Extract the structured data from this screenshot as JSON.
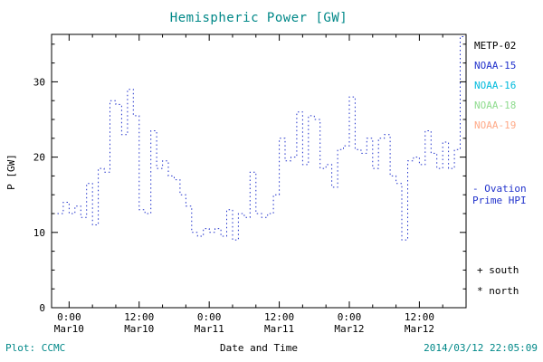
{
  "colors": {
    "accent_teal": "#008888",
    "line_blue": "#2233cc",
    "axis_black": "#000000"
  },
  "legend": {
    "satellites": [
      {
        "label": "METP-02",
        "color": "#000000"
      },
      {
        "label": "NOAA-15",
        "color": "#2233cc"
      },
      {
        "label": "NOAA-16",
        "color": "#00bbdd"
      },
      {
        "label": "NOAA-18",
        "color": "#8fdc8f"
      },
      {
        "label": "NOAA-19",
        "color": "#ffaa88"
      },
      {
        "label": "METP-02",
        "color": "#000000"
      }
    ],
    "ovation_label": "- Ovation\nPrime HPI",
    "south_label": "+ south",
    "north_label": "* north"
  },
  "footer": {
    "plot_source": "Plot: CCMC",
    "timestamp": "2014/03/12 22:05:09"
  },
  "chart_data": {
    "type": "line",
    "title": "Hemispheric Power [GW]",
    "xlabel": "Date and Time",
    "ylabel": "P [GW]",
    "ylim": [
      0,
      36.3
    ],
    "xlim_hours": [
      -3,
      68
    ],
    "y_ticks": [
      0,
      10,
      20,
      30
    ],
    "y_minor_step": 2.5,
    "x_minor_step": 4,
    "x_ticks": [
      {
        "hour": 0,
        "time": "0:00",
        "date": "Mar10"
      },
      {
        "hour": 12,
        "time": "12:00",
        "date": "Mar10"
      },
      {
        "hour": 24,
        "time": "0:00",
        "date": "Mar11"
      },
      {
        "hour": 36,
        "time": "12:00",
        "date": "Mar11"
      },
      {
        "hour": 48,
        "time": "0:00",
        "date": "Mar12"
      },
      {
        "hour": 60,
        "time": "12:00",
        "date": "Mar12"
      }
    ],
    "series": [
      {
        "name": "Ovation Prime HPI",
        "color": "#2233cc",
        "style": "dotted-step",
        "start_hour": -2,
        "step_hours": 1,
        "values": [
          12.5,
          14,
          12.5,
          13.5,
          12,
          16.5,
          11,
          18.5,
          18,
          27.5,
          27,
          23,
          29,
          25.5,
          13,
          12.5,
          23.5,
          18.5,
          19.5,
          17.5,
          17,
          15,
          13.5,
          10,
          9.5,
          10.5,
          10,
          10.5,
          9.5,
          13,
          9,
          12.5,
          12,
          18,
          12.5,
          12,
          12.5,
          15,
          22.5,
          19.5,
          20,
          26,
          19,
          25.5,
          25,
          18.5,
          19,
          16,
          21,
          21.5,
          28,
          21,
          20.5,
          22.5,
          18.5,
          22.5,
          23,
          17.5,
          16.5,
          9,
          19.5,
          20,
          19,
          23.5,
          20.5,
          18.5,
          22,
          18.5,
          21,
          36
        ]
      }
    ]
  }
}
